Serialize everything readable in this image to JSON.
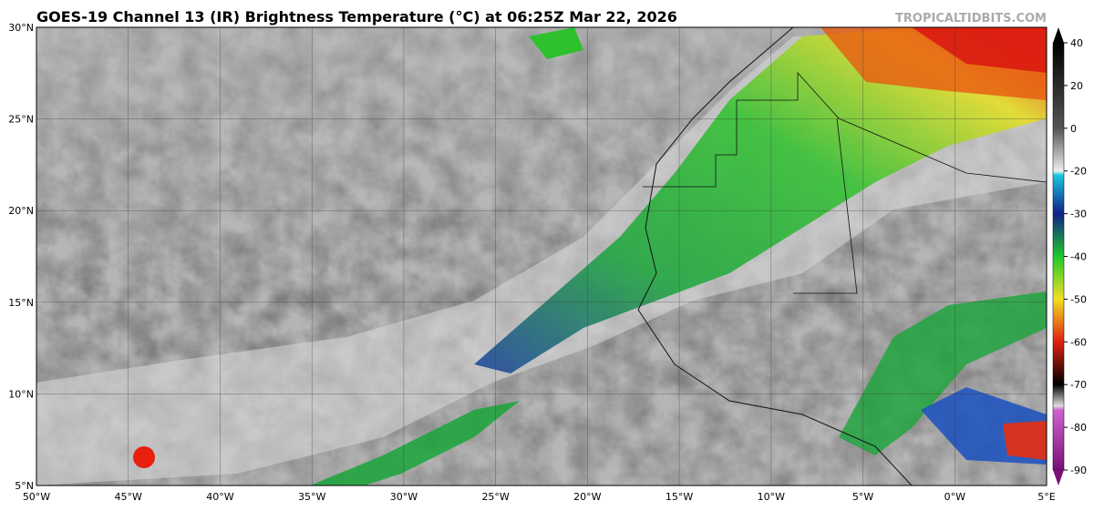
{
  "header": {
    "title": "GOES-19 Channel 13 (IR) Brightness Temperature (°C) at 06:25Z Mar 22, 2026",
    "credit": "TROPICALTIDBITS.COM"
  },
  "map": {
    "lon_labels": [
      "50°W",
      "45°W",
      "40°W",
      "35°W",
      "30°W",
      "25°W",
      "20°W",
      "15°W",
      "10°W",
      "5°W",
      "0°W",
      "5°E"
    ],
    "lat_labels": [
      "30°N",
      "25°N",
      "20°N",
      "15°N",
      "10°N",
      "5°N"
    ]
  },
  "colorbar": {
    "ticks": [
      40,
      20,
      0,
      -20,
      -30,
      -40,
      -50,
      -60,
      -70,
      -80,
      -90
    ]
  }
}
